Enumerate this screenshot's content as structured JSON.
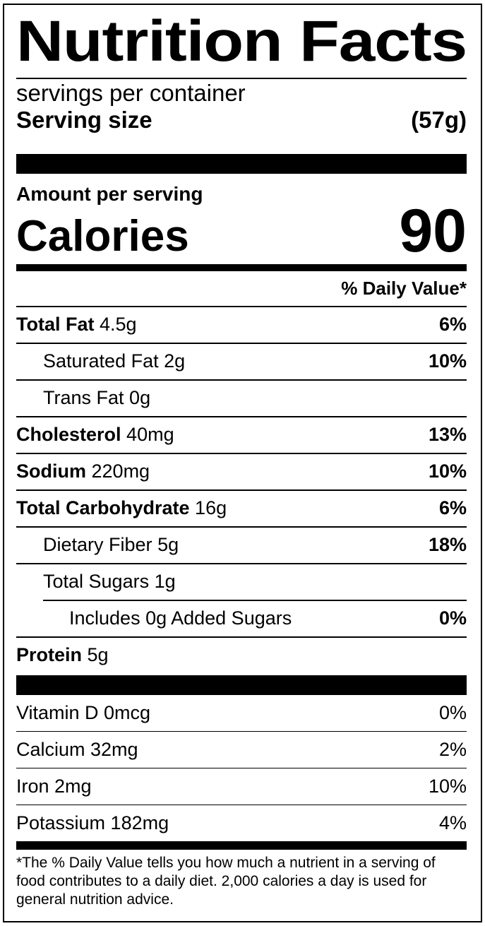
{
  "title": "Nutrition Facts",
  "servings_per_container": "servings per container",
  "serving_size": {
    "label": "Serving size",
    "value": "(57g)"
  },
  "amount_per_serving": "Amount per serving",
  "calories": {
    "label": "Calories",
    "value": "90"
  },
  "daily_value_header": "% Daily Value*",
  "nutrients": [
    {
      "name": "Total Fat",
      "amount": "4.5g",
      "dv": "6%"
    },
    {
      "name": "Saturated Fat",
      "amount": "2g",
      "dv": "10%"
    },
    {
      "name": "Trans Fat",
      "amount": "0g",
      "dv": ""
    },
    {
      "name": "Cholesterol",
      "amount": "40mg",
      "dv": "13%"
    },
    {
      "name": "Sodium",
      "amount": "220mg",
      "dv": "10%"
    },
    {
      "name": "Total Carbohydrate",
      "amount": "16g",
      "dv": "6%"
    },
    {
      "name": "Dietary Fiber",
      "amount": "5g",
      "dv": "18%"
    },
    {
      "name": "Total Sugars",
      "amount": "1g",
      "dv": ""
    },
    {
      "name": "Includes 0g Added Sugars",
      "amount": "",
      "dv": "0%"
    },
    {
      "name": "Protein",
      "amount": "5g",
      "dv": ""
    }
  ],
  "micronutrients": [
    {
      "label": "Vitamin D 0mcg",
      "dv": "0%"
    },
    {
      "label": "Calcium 32mg",
      "dv": "2%"
    },
    {
      "label": "Iron 2mg",
      "dv": "10%"
    },
    {
      "label": "Potassium 182mg",
      "dv": "4%"
    }
  ],
  "footnote": "*The % Daily Value tells you how much a nutrient in a serving of food contributes to a daily diet. 2,000 calories a day is used for general nutrition advice."
}
